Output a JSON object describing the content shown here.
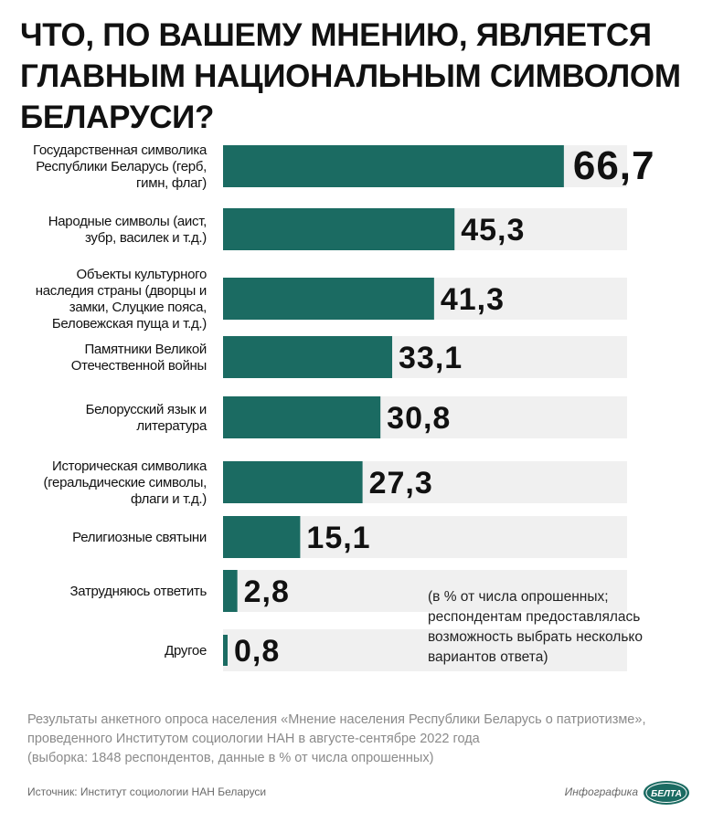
{
  "title_lines": [
    "ЧТО, ПО ВАШЕМУ МНЕНИЮ, ЯВЛЯЕТСЯ",
    "ГЛАВНЫМ НАЦИОНАЛЬНЫМ СИМВОЛОМ",
    "БЕЛАРУСИ?"
  ],
  "chart_data": {
    "type": "bar",
    "orientation": "horizontal",
    "categories": [
      [
        "Государственная символика",
        "Республики Беларусь (герб,",
        "гимн, флаг)"
      ],
      [
        "Народные символы (аист,",
        "зубр, василек и т.д.)"
      ],
      [
        "Объекты культурного",
        "наследия страны (дворцы и",
        "замки, Слуцкие пояса,",
        "Беловежская пуща и т.д.)"
      ],
      [
        "Памятники Великой",
        "Отечественной войны"
      ],
      [
        "Белорусский язык и",
        "литература"
      ],
      [
        "Историческая символика",
        "(геральдические символы,",
        "флаги и т.д.)"
      ],
      [
        "Религиозные святыни"
      ],
      [
        "Затрудняюсь ответить"
      ],
      [
        "Другое"
      ]
    ],
    "values": [
      66.7,
      45.3,
      41.3,
      33.1,
      30.8,
      27.3,
      15.1,
      2.8,
      0.8
    ],
    "value_labels": [
      "66,7",
      "45,3",
      "41,3",
      "33,1",
      "30,8",
      "27,3",
      "15,1",
      "2,8",
      "0,8"
    ],
    "xlim": [
      0,
      100
    ],
    "bar_color": "#1b6b62",
    "row_band_color": "#f0f0f0"
  },
  "note_lines": [
    "(в % от числа опрошенных;",
    "респондентам предоставлялась",
    "возможность выбрать несколько",
    "вариантов ответа)"
  ],
  "footnote_lines": [
    "Результаты анкетного опроса населения «Мнение населения Республики Беларусь о патриотизме»,",
    "проведенного Институтом социологии НАН в августе-сентябре 2022 года",
    "(выборка: 1848 респондентов, данные в % от числа опрошенных)"
  ],
  "source": "Источник: Институт социологии НАН Беларуси",
  "credit": "Инфографика",
  "logo_text": "БЕЛТА",
  "colors": {
    "logo": "#1b6b62",
    "footnote": "#8a8a8a"
  }
}
